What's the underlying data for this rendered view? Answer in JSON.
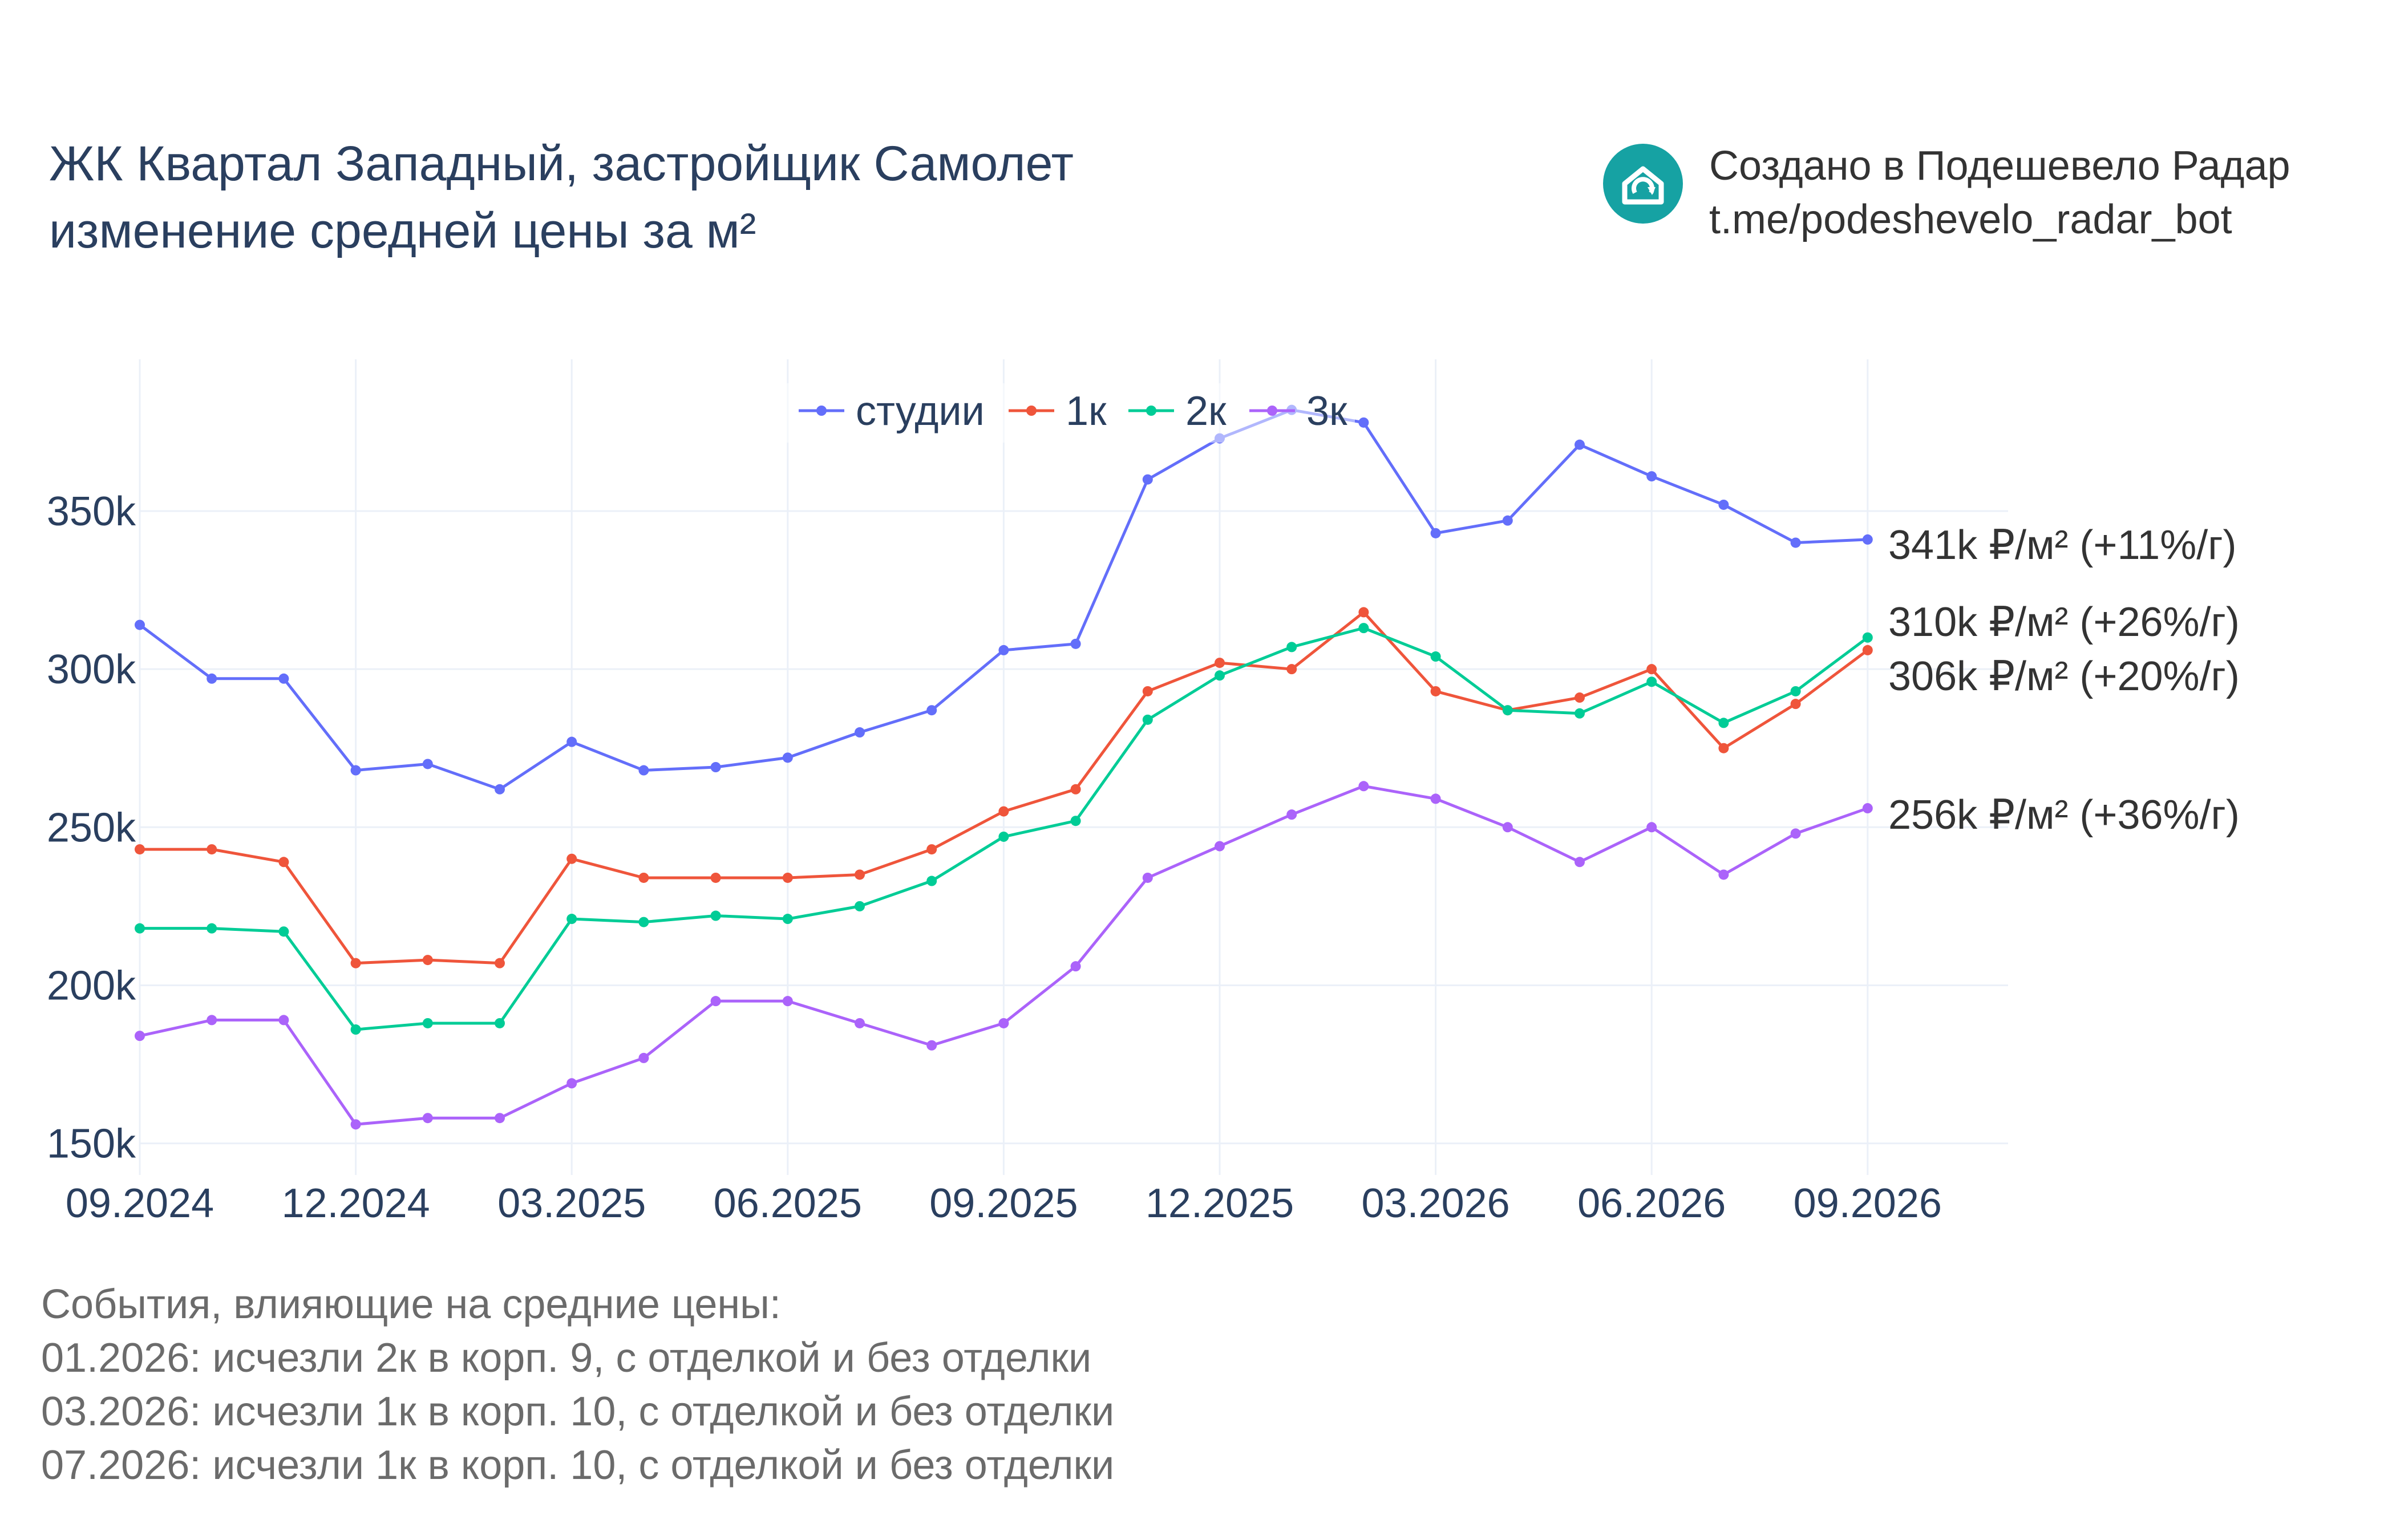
{
  "title": {
    "line1": "ЖК Квартал Западный, застройщик Самолет",
    "line2": "изменение средней цены за м²"
  },
  "brand": {
    "line1": "Создано в Подешевело Радар",
    "line2": "t.me/podeshevelo_radar_bot",
    "logo_icon": "house-refresh-icon",
    "logo_color": "#16a2a3"
  },
  "events": {
    "heading": "События, влияющие на средние цены:",
    "items": [
      "01.2026: исчезли 2к в корп. 9, с отделкой и без отделки",
      "03.2026: исчезли 1к в корп. 10, с отделкой и без отделки",
      "07.2026: исчезли 1к в корп. 10, с отделкой и без отделки"
    ]
  },
  "chart_data": {
    "type": "line",
    "x": [
      "09.2024",
      "10.2024",
      "11.2024",
      "12.2024",
      "01.2025",
      "02.2025",
      "03.2025",
      "04.2025",
      "05.2025",
      "06.2025",
      "07.2025",
      "08.2025",
      "09.2025",
      "10.2025",
      "11.2025",
      "12.2025",
      "01.2026",
      "02.2026",
      "03.2026",
      "04.2026",
      "05.2026",
      "06.2026",
      "07.2026",
      "08.2026",
      "09.2026"
    ],
    "x_tick_labels": [
      "09.2024",
      "12.2024",
      "03.2025",
      "06.2025",
      "09.2025",
      "12.2025",
      "03.2026",
      "06.2026",
      "09.2026"
    ],
    "y_tick_values": [
      150000,
      200000,
      250000,
      300000,
      350000
    ],
    "y_tick_labels": [
      "150k",
      "200k",
      "250k",
      "300k",
      "350k"
    ],
    "ylim": [
      140000,
      398000
    ],
    "grid": true,
    "legend_position": "top-center",
    "series": [
      {
        "name": "студии",
        "color": "#636efa",
        "values": [
          314000,
          297000,
          297000,
          268000,
          270000,
          262000,
          277000,
          268000,
          269000,
          272000,
          280000,
          287000,
          306000,
          308000,
          360000,
          373000,
          382000,
          378000,
          343000,
          347000,
          371000,
          361000,
          352000,
          340000,
          341000
        ],
        "end_label": "341k ₽/м² (+11%/г)"
      },
      {
        "name": "1к",
        "color": "#ef553b",
        "values": [
          243000,
          243000,
          239000,
          207000,
          208000,
          207000,
          240000,
          234000,
          234000,
          234000,
          235000,
          243000,
          255000,
          262000,
          293000,
          302000,
          300000,
          318000,
          293000,
          287000,
          291000,
          300000,
          275000,
          289000,
          306000
        ],
        "end_label": "306k ₽/м² (+20%/г)"
      },
      {
        "name": "2к",
        "color": "#00cc96",
        "values": [
          218000,
          218000,
          217000,
          186000,
          188000,
          188000,
          221000,
          220000,
          222000,
          221000,
          225000,
          233000,
          247000,
          252000,
          284000,
          298000,
          307000,
          313000,
          304000,
          287000,
          286000,
          296000,
          283000,
          293000,
          310000
        ],
        "end_label": "310k ₽/м² (+26%/г)"
      },
      {
        "name": "3к",
        "color": "#ab63fa",
        "values": [
          184000,
          189000,
          189000,
          156000,
          158000,
          158000,
          169000,
          177000,
          195000,
          195000,
          188000,
          181000,
          188000,
          206000,
          234000,
          244000,
          254000,
          263000,
          259000,
          250000,
          239000,
          250000,
          235000,
          248000,
          256000
        ],
        "end_label": "256k ₽/м² (+36%/г)"
      }
    ]
  }
}
